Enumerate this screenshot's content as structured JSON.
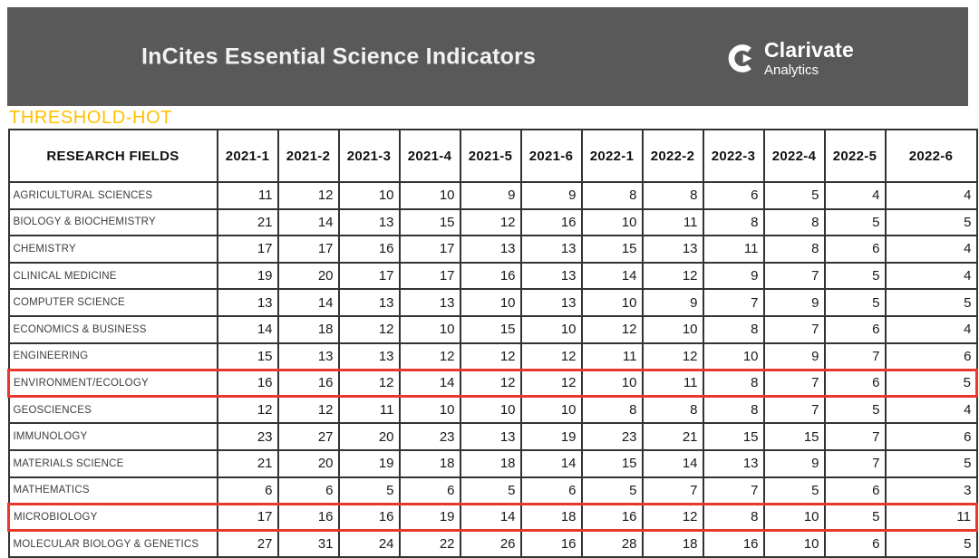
{
  "header": {
    "title": "InCites Essential Science Indicators",
    "logo": {
      "name": "Clarivate",
      "subtitle": "Analytics"
    }
  },
  "page_label": "THRESHOLD-HOT",
  "colors": {
    "band_bg": "#595959",
    "label_gold": "#FFC000",
    "highlight_red": "#e8382c",
    "table_border": "#333333"
  },
  "table": {
    "columns": [
      "RESEARCH FIELDS",
      "2021-1",
      "2021-2",
      "2021-3",
      "2021-4",
      "2021-5",
      "2021-6",
      "2022-1",
      "2022-2",
      "2022-3",
      "2022-4",
      "2022-5",
      "2022-6"
    ],
    "rows": [
      {
        "field": "AGRICULTURAL SCIENCES",
        "values": [
          11,
          12,
          10,
          10,
          9,
          9,
          8,
          8,
          6,
          5,
          4,
          4
        ],
        "highlighted": false
      },
      {
        "field": "BIOLOGY & BIOCHEMISTRY",
        "values": [
          21,
          14,
          13,
          15,
          12,
          16,
          10,
          11,
          8,
          8,
          5,
          5
        ],
        "highlighted": false
      },
      {
        "field": "CHEMISTRY",
        "values": [
          17,
          17,
          16,
          17,
          13,
          13,
          15,
          13,
          11,
          8,
          6,
          4
        ],
        "highlighted": false
      },
      {
        "field": "CLINICAL MEDICINE",
        "values": [
          19,
          20,
          17,
          17,
          16,
          13,
          14,
          12,
          9,
          7,
          5,
          4
        ],
        "highlighted": false
      },
      {
        "field": "COMPUTER SCIENCE",
        "values": [
          13,
          14,
          13,
          13,
          10,
          13,
          10,
          9,
          7,
          9,
          5,
          5
        ],
        "highlighted": false
      },
      {
        "field": "ECONOMICS & BUSINESS",
        "values": [
          14,
          18,
          12,
          10,
          15,
          10,
          12,
          10,
          8,
          7,
          6,
          4
        ],
        "highlighted": false
      },
      {
        "field": "ENGINEERING",
        "values": [
          15,
          13,
          13,
          12,
          12,
          12,
          11,
          12,
          10,
          9,
          7,
          6
        ],
        "highlighted": false
      },
      {
        "field": "ENVIRONMENT/ECOLOGY",
        "values": [
          16,
          16,
          12,
          14,
          12,
          12,
          10,
          11,
          8,
          7,
          6,
          5
        ],
        "highlighted": true
      },
      {
        "field": "GEOSCIENCES",
        "values": [
          12,
          12,
          11,
          10,
          10,
          10,
          8,
          8,
          8,
          7,
          5,
          4
        ],
        "highlighted": false
      },
      {
        "field": "IMMUNOLOGY",
        "values": [
          23,
          27,
          20,
          23,
          13,
          19,
          23,
          21,
          15,
          15,
          7,
          6
        ],
        "highlighted": false
      },
      {
        "field": "MATERIALS SCIENCE",
        "values": [
          21,
          20,
          19,
          18,
          18,
          14,
          15,
          14,
          13,
          9,
          7,
          5
        ],
        "highlighted": false
      },
      {
        "field": "MATHEMATICS",
        "values": [
          6,
          6,
          5,
          6,
          5,
          6,
          5,
          7,
          7,
          5,
          6,
          3
        ],
        "highlighted": false
      },
      {
        "field": "MICROBIOLOGY",
        "values": [
          17,
          16,
          16,
          19,
          14,
          18,
          16,
          12,
          8,
          10,
          5,
          11
        ],
        "highlighted": true
      },
      {
        "field": "MOLECULAR BIOLOGY & GENETICS",
        "values": [
          27,
          31,
          24,
          22,
          26,
          16,
          28,
          18,
          16,
          10,
          6,
          5
        ],
        "highlighted": false
      }
    ]
  }
}
